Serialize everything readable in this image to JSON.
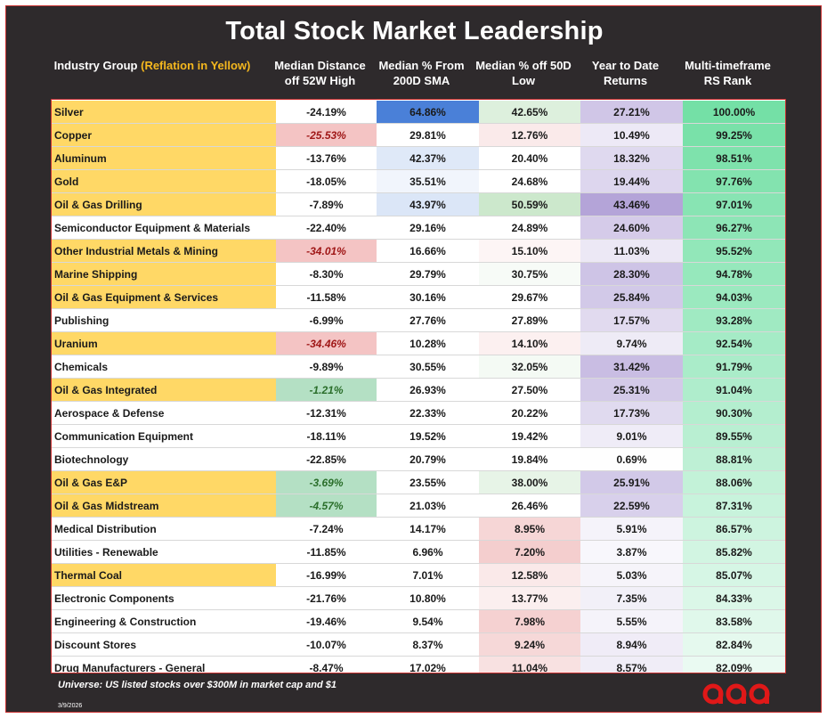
{
  "title": "Total Stock Market Leadership",
  "headers": {
    "industry_group": "Industry Group",
    "industry_group_note": "(Reflation in Yellow)",
    "col1": "Median Distance off 52W High",
    "col2": "Median % From 200D SMA",
    "col3": "Median % off 50D Low",
    "col4": "Year to Date Returns",
    "col5": "Multi-timeframe RS Rank"
  },
  "colors": {
    "reflation_yellow": "#ffd866",
    "rs_green": "#74e0a6",
    "sma_blue": "#4a80d8",
    "red_highlight": "#f4c4c4",
    "green_highlight": "#b4e0c4",
    "purple": "#b4a4d8"
  },
  "chart_data": {
    "type": "table",
    "title": "Total Stock Market Leadership",
    "columns": [
      "Industry Group",
      "Median Distance off 52W High",
      "Median % From 200D SMA",
      "Median % off 50D Low",
      "Year to Date Returns",
      "Multi-timeframe RS Rank"
    ],
    "rows": [
      {
        "group": "Silver",
        "reflation": true,
        "dist52w": "-24.19%",
        "sma200": "64.86%",
        "low50": "42.65%",
        "ytd": "27.21%",
        "rs": "100.00%",
        "dist_style": ""
      },
      {
        "group": "Copper",
        "reflation": true,
        "dist52w": "-25.53%",
        "sma200": "29.81%",
        "low50": "12.76%",
        "ytd": "10.49%",
        "rs": "99.25%",
        "dist_style": "red"
      },
      {
        "group": "Aluminum",
        "reflation": true,
        "dist52w": "-13.76%",
        "sma200": "42.37%",
        "low50": "20.40%",
        "ytd": "18.32%",
        "rs": "98.51%",
        "dist_style": ""
      },
      {
        "group": "Gold",
        "reflation": true,
        "dist52w": "-18.05%",
        "sma200": "35.51%",
        "low50": "24.68%",
        "ytd": "19.44%",
        "rs": "97.76%",
        "dist_style": ""
      },
      {
        "group": "Oil & Gas Drilling",
        "reflation": true,
        "dist52w": "-7.89%",
        "sma200": "43.97%",
        "low50": "50.59%",
        "ytd": "43.46%",
        "rs": "97.01%",
        "dist_style": ""
      },
      {
        "group": "Semiconductor Equipment & Materials",
        "reflation": false,
        "dist52w": "-22.40%",
        "sma200": "29.16%",
        "low50": "24.89%",
        "ytd": "24.60%",
        "rs": "96.27%",
        "dist_style": ""
      },
      {
        "group": "Other Industrial Metals & Mining",
        "reflation": true,
        "dist52w": "-34.01%",
        "sma200": "16.66%",
        "low50": "15.10%",
        "ytd": "11.03%",
        "rs": "95.52%",
        "dist_style": "red"
      },
      {
        "group": "Marine Shipping",
        "reflation": true,
        "dist52w": "-8.30%",
        "sma200": "29.79%",
        "low50": "30.75%",
        "ytd": "28.30%",
        "rs": "94.78%",
        "dist_style": ""
      },
      {
        "group": "Oil & Gas Equipment & Services",
        "reflation": true,
        "dist52w": "-11.58%",
        "sma200": "30.16%",
        "low50": "29.67%",
        "ytd": "25.84%",
        "rs": "94.03%",
        "dist_style": ""
      },
      {
        "group": "Publishing",
        "reflation": false,
        "dist52w": "-6.99%",
        "sma200": "27.76%",
        "low50": "27.89%",
        "ytd": "17.57%",
        "rs": "93.28%",
        "dist_style": ""
      },
      {
        "group": "Uranium",
        "reflation": true,
        "dist52w": "-34.46%",
        "sma200": "10.28%",
        "low50": "14.10%",
        "ytd": "9.74%",
        "rs": "92.54%",
        "dist_style": "red"
      },
      {
        "group": "Chemicals",
        "reflation": false,
        "dist52w": "-9.89%",
        "sma200": "30.55%",
        "low50": "32.05%",
        "ytd": "31.42%",
        "rs": "91.79%",
        "dist_style": ""
      },
      {
        "group": "Oil & Gas Integrated",
        "reflation": true,
        "dist52w": "-1.21%",
        "sma200": "26.93%",
        "low50": "27.50%",
        "ytd": "25.31%",
        "rs": "91.04%",
        "dist_style": "green"
      },
      {
        "group": "Aerospace & Defense",
        "reflation": false,
        "dist52w": "-12.31%",
        "sma200": "22.33%",
        "low50": "20.22%",
        "ytd": "17.73%",
        "rs": "90.30%",
        "dist_style": ""
      },
      {
        "group": "Communication Equipment",
        "reflation": false,
        "dist52w": "-18.11%",
        "sma200": "19.52%",
        "low50": "19.42%",
        "ytd": "9.01%",
        "rs": "89.55%",
        "dist_style": ""
      },
      {
        "group": "Biotechnology",
        "reflation": false,
        "dist52w": "-22.85%",
        "sma200": "20.79%",
        "low50": "19.84%",
        "ytd": "0.69%",
        "rs": "88.81%",
        "dist_style": ""
      },
      {
        "group": "Oil & Gas E&P",
        "reflation": true,
        "dist52w": "-3.69%",
        "sma200": "23.55%",
        "low50": "38.00%",
        "ytd": "25.91%",
        "rs": "88.06%",
        "dist_style": "green"
      },
      {
        "group": "Oil & Gas Midstream",
        "reflation": true,
        "dist52w": "-4.57%",
        "sma200": "21.03%",
        "low50": "26.46%",
        "ytd": "22.59%",
        "rs": "87.31%",
        "dist_style": "green"
      },
      {
        "group": "Medical Distribution",
        "reflation": false,
        "dist52w": "-7.24%",
        "sma200": "14.17%",
        "low50": "8.95%",
        "ytd": "5.91%",
        "rs": "86.57%",
        "dist_style": ""
      },
      {
        "group": "Utilities - Renewable",
        "reflation": false,
        "dist52w": "-11.85%",
        "sma200": "6.96%",
        "low50": "7.20%",
        "ytd": "3.87%",
        "rs": "85.82%",
        "dist_style": ""
      },
      {
        "group": "Thermal Coal",
        "reflation": true,
        "dist52w": "-16.99%",
        "sma200": "7.01%",
        "low50": "12.58%",
        "ytd": "5.03%",
        "rs": "85.07%",
        "dist_style": ""
      },
      {
        "group": "Electronic Components",
        "reflation": false,
        "dist52w": "-21.76%",
        "sma200": "10.80%",
        "low50": "13.77%",
        "ytd": "7.35%",
        "rs": "84.33%",
        "dist_style": ""
      },
      {
        "group": "Engineering & Construction",
        "reflation": false,
        "dist52w": "-19.46%",
        "sma200": "9.54%",
        "low50": "7.98%",
        "ytd": "5.55%",
        "rs": "83.58%",
        "dist_style": ""
      },
      {
        "group": "Discount Stores",
        "reflation": false,
        "dist52w": "-10.07%",
        "sma200": "8.37%",
        "low50": "9.24%",
        "ytd": "8.94%",
        "rs": "82.84%",
        "dist_style": ""
      },
      {
        "group": "Drug Manufacturers - General",
        "reflation": false,
        "dist52w": "-8.47%",
        "sma200": "17.02%",
        "low50": "11.04%",
        "ytd": "8.57%",
        "rs": "82.09%",
        "dist_style": ""
      }
    ]
  },
  "footnote": "Universe: US listed stocks over $300M in market cap and $1",
  "date": "3/9/2026",
  "logo_icon": "logo-mark"
}
